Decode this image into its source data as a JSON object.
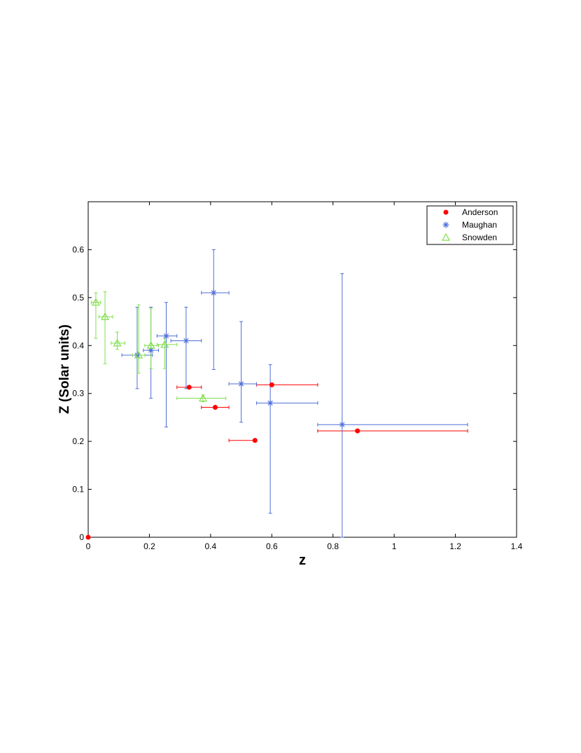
{
  "chart_data": {
    "type": "scatter",
    "title": "",
    "xlabel": "z",
    "ylabel": "Z (Solar units)",
    "xlim": [
      0,
      1.4
    ],
    "ylim": [
      0,
      0.7
    ],
    "xticks": [
      "0",
      "0.2",
      "0.4",
      "0.6",
      "0.8",
      "1",
      "1.2",
      "1.4"
    ],
    "yticks": [
      "0",
      "0.1",
      "0.2",
      "0.3",
      "0.4",
      "0.5",
      "0.6"
    ],
    "grid": false,
    "legend_position": "top-right",
    "series": [
      {
        "name": "Anderson",
        "marker": "dot",
        "color": "#ff0000",
        "points": [
          {
            "x": 0.0,
            "y": 0.0
          },
          {
            "x": 0.33,
            "y": 0.313,
            "xerr": [
              0.29,
              0.37
            ]
          },
          {
            "x": 0.415,
            "y": 0.271,
            "xerr": [
              0.37,
              0.46
            ]
          },
          {
            "x": 0.545,
            "y": 0.202,
            "xerr": [
              0.46,
              0.55
            ]
          },
          {
            "x": 0.6,
            "y": 0.318,
            "xerr": [
              0.55,
              0.75
            ]
          },
          {
            "x": 0.88,
            "y": 0.222,
            "xerr": [
              0.75,
              1.24
            ]
          }
        ]
      },
      {
        "name": "Maughan",
        "marker": "star",
        "color": "#4f6fd8",
        "points": [
          {
            "x": 0.16,
            "y": 0.38,
            "xerr": [
              0.11,
              0.21
            ],
            "yerr": [
              0.31,
              0.48
            ]
          },
          {
            "x": 0.205,
            "y": 0.39,
            "xerr": [
              0.18,
              0.23
            ],
            "yerr": [
              0.29,
              0.48
            ]
          },
          {
            "x": 0.255,
            "y": 0.42,
            "xerr": [
              0.225,
              0.29
            ],
            "yerr": [
              0.23,
              0.49
            ]
          },
          {
            "x": 0.32,
            "y": 0.41,
            "xerr": [
              0.27,
              0.37
            ],
            "yerr": [
              0.31,
              0.48
            ]
          },
          {
            "x": 0.41,
            "y": 0.51,
            "xerr": [
              0.37,
              0.46
            ],
            "yerr": [
              0.35,
              0.6
            ]
          },
          {
            "x": 0.5,
            "y": 0.32,
            "xerr": [
              0.46,
              0.55
            ],
            "yerr": [
              0.24,
              0.45
            ]
          },
          {
            "x": 0.595,
            "y": 0.28,
            "xerr": [
              0.55,
              0.75
            ],
            "yerr": [
              0.05,
              0.36
            ]
          },
          {
            "x": 0.83,
            "y": 0.235,
            "xerr": [
              0.75,
              1.24
            ],
            "yerr": [
              0.0,
              0.55
            ]
          }
        ]
      },
      {
        "name": "Snowden",
        "marker": "triangle",
        "color": "#7fe04a",
        "points": [
          {
            "x": 0.025,
            "y": 0.49,
            "xerr": [
              0.01,
              0.04
            ],
            "yerr": [
              0.415,
              0.51
            ]
          },
          {
            "x": 0.055,
            "y": 0.46,
            "xerr": [
              0.035,
              0.08
            ],
            "yerr": [
              0.362,
              0.512
            ]
          },
          {
            "x": 0.095,
            "y": 0.405,
            "xerr": [
              0.075,
              0.12
            ],
            "yerr": [
              0.392,
              0.428
            ]
          },
          {
            "x": 0.165,
            "y": 0.38,
            "xerr": [
              0.145,
              0.185
            ],
            "yerr": [
              0.342,
              0.485
            ]
          },
          {
            "x": 0.205,
            "y": 0.4,
            "xerr": [
              0.185,
              0.23
            ],
            "yerr": [
              0.352,
              0.478
            ]
          },
          {
            "x": 0.25,
            "y": 0.402,
            "xerr": [
              0.225,
              0.29
            ],
            "yerr": [
              0.352,
              0.415
            ]
          },
          {
            "x": 0.375,
            "y": 0.29,
            "xerr": [
              0.29,
              0.45
            ],
            "yerr": [
              0.283,
              0.297
            ]
          }
        ]
      }
    ]
  }
}
